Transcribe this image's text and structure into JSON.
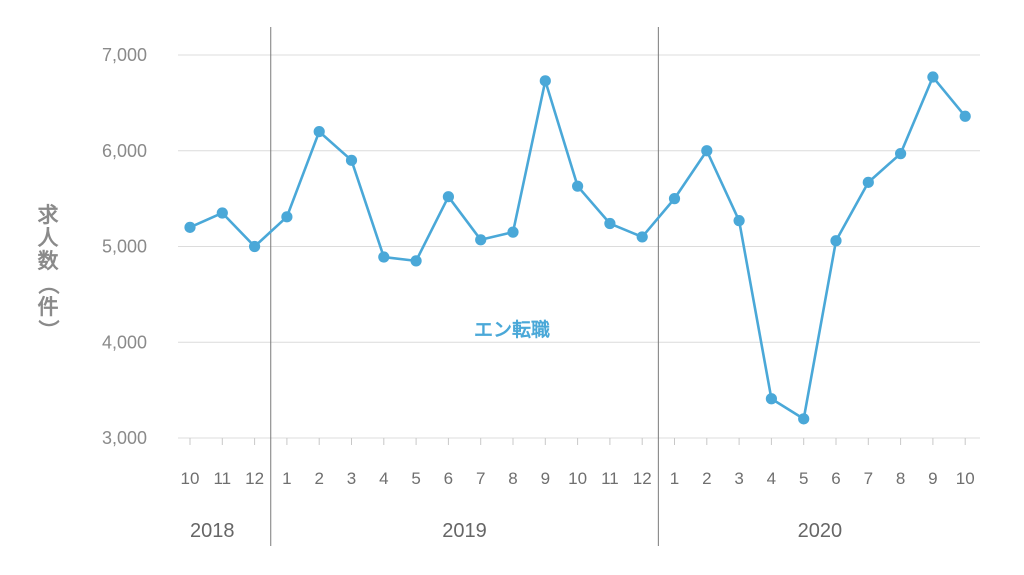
{
  "chart_data": {
    "type": "line",
    "ylabel_chars": [
      "求",
      "人",
      "数",
      "（",
      "件",
      "）"
    ],
    "ylim": [
      3000,
      7000
    ],
    "yticks": [
      {
        "value": 3000,
        "label": "3,000"
      },
      {
        "value": 4000,
        "label": "4,000"
      },
      {
        "value": 5000,
        "label": "5,000"
      },
      {
        "value": 6000,
        "label": "6,000"
      },
      {
        "value": 7000,
        "label": "7,000"
      }
    ],
    "categories": [
      "10",
      "11",
      "12",
      "1",
      "2",
      "3",
      "4",
      "5",
      "6",
      "7",
      "8",
      "9",
      "10",
      "11",
      "12",
      "1",
      "2",
      "3",
      "4",
      "5",
      "6",
      "7",
      "8",
      "9",
      "10"
    ],
    "years": [
      {
        "label": "2018",
        "first_index": 0,
        "last_index": 2
      },
      {
        "label": "2019",
        "first_index": 3,
        "last_index": 14
      },
      {
        "label": "2020",
        "first_index": 15,
        "last_index": 24
      }
    ],
    "series": [
      {
        "name": "エン転職",
        "color": "#4aa8d8",
        "values": [
          5200,
          5350,
          5000,
          5310,
          6200,
          5900,
          4890,
          4850,
          5520,
          5070,
          5150,
          6730,
          5630,
          5240,
          5100,
          5500,
          6000,
          5270,
          3410,
          3200,
          5060,
          5670,
          5970,
          6770,
          6360
        ]
      }
    ],
    "grid": true,
    "colors": {
      "line": "#4aa8d8",
      "grid": "#dcdcdc",
      "divider": "#7a7a7a"
    }
  }
}
